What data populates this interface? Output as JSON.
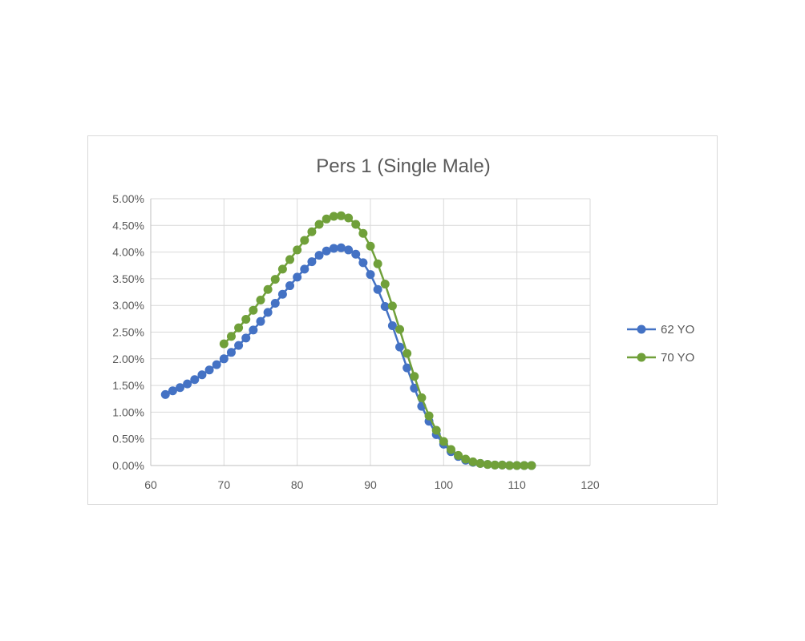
{
  "chart_data": {
    "type": "line",
    "title": "Pers 1 (Single Male)",
    "xlabel": "",
    "ylabel": "",
    "xlim": [
      60,
      120
    ],
    "ylim": [
      0,
      0.05
    ],
    "x_ticks": [
      60,
      70,
      80,
      90,
      100,
      110,
      120
    ],
    "x_tick_labels": [
      "60",
      "70",
      "80",
      "90",
      "100",
      "110",
      "120"
    ],
    "y_ticks": [
      0,
      0.005,
      0.01,
      0.015,
      0.02,
      0.025,
      0.03,
      0.035,
      0.04,
      0.045,
      0.05
    ],
    "y_tick_labels": [
      "0.00%",
      "0.50%",
      "1.00%",
      "1.50%",
      "2.00%",
      "2.50%",
      "3.00%",
      "3.50%",
      "4.00%",
      "4.50%",
      "5.00%"
    ],
    "grid": true,
    "legend_position": "right",
    "series": [
      {
        "name": "62 YO",
        "color": "#4472c4",
        "x": [
          62,
          63,
          64,
          65,
          66,
          67,
          68,
          69,
          70,
          71,
          72,
          73,
          74,
          75,
          76,
          77,
          78,
          79,
          80,
          81,
          82,
          83,
          84,
          85,
          86,
          87,
          88,
          89,
          90,
          91,
          92,
          93,
          94,
          95,
          96,
          97,
          98,
          99,
          100,
          101,
          102,
          103,
          104,
          105,
          106,
          107,
          108,
          109,
          110,
          111,
          112
        ],
        "values": [
          0.0133,
          0.014,
          0.0146,
          0.0153,
          0.0161,
          0.017,
          0.0179,
          0.0189,
          0.02,
          0.0212,
          0.0225,
          0.0239,
          0.0254,
          0.027,
          0.0287,
          0.0304,
          0.0321,
          0.0337,
          0.0353,
          0.0368,
          0.0382,
          0.0394,
          0.0402,
          0.0407,
          0.0408,
          0.0404,
          0.0396,
          0.038,
          0.0358,
          0.033,
          0.0298,
          0.0262,
          0.0222,
          0.0183,
          0.0145,
          0.0111,
          0.0083,
          0.0058,
          0.004,
          0.0026,
          0.0017,
          0.001,
          0.0006,
          0.0004,
          0.0002,
          0.0001,
          0.0001,
          0.0,
          0.0,
          0.0,
          0.0
        ]
      },
      {
        "name": "70 YO",
        "color": "#70a03a",
        "x": [
          70,
          71,
          72,
          73,
          74,
          75,
          76,
          77,
          78,
          79,
          80,
          81,
          82,
          83,
          84,
          85,
          86,
          87,
          88,
          89,
          90,
          91,
          92,
          93,
          94,
          95,
          96,
          97,
          98,
          99,
          100,
          101,
          102,
          103,
          104,
          105,
          106,
          107,
          108,
          109,
          110,
          111,
          112
        ],
        "values": [
          0.0228,
          0.0242,
          0.0258,
          0.0274,
          0.0291,
          0.031,
          0.033,
          0.0349,
          0.0368,
          0.0386,
          0.0404,
          0.0422,
          0.0438,
          0.0452,
          0.0462,
          0.0467,
          0.0468,
          0.0464,
          0.0452,
          0.0435,
          0.0411,
          0.0378,
          0.034,
          0.0299,
          0.0255,
          0.021,
          0.0167,
          0.0127,
          0.0093,
          0.0066,
          0.0045,
          0.003,
          0.0019,
          0.0012,
          0.0007,
          0.0004,
          0.0002,
          0.0001,
          0.0001,
          0.0,
          0.0,
          0.0,
          0.0
        ]
      }
    ]
  }
}
